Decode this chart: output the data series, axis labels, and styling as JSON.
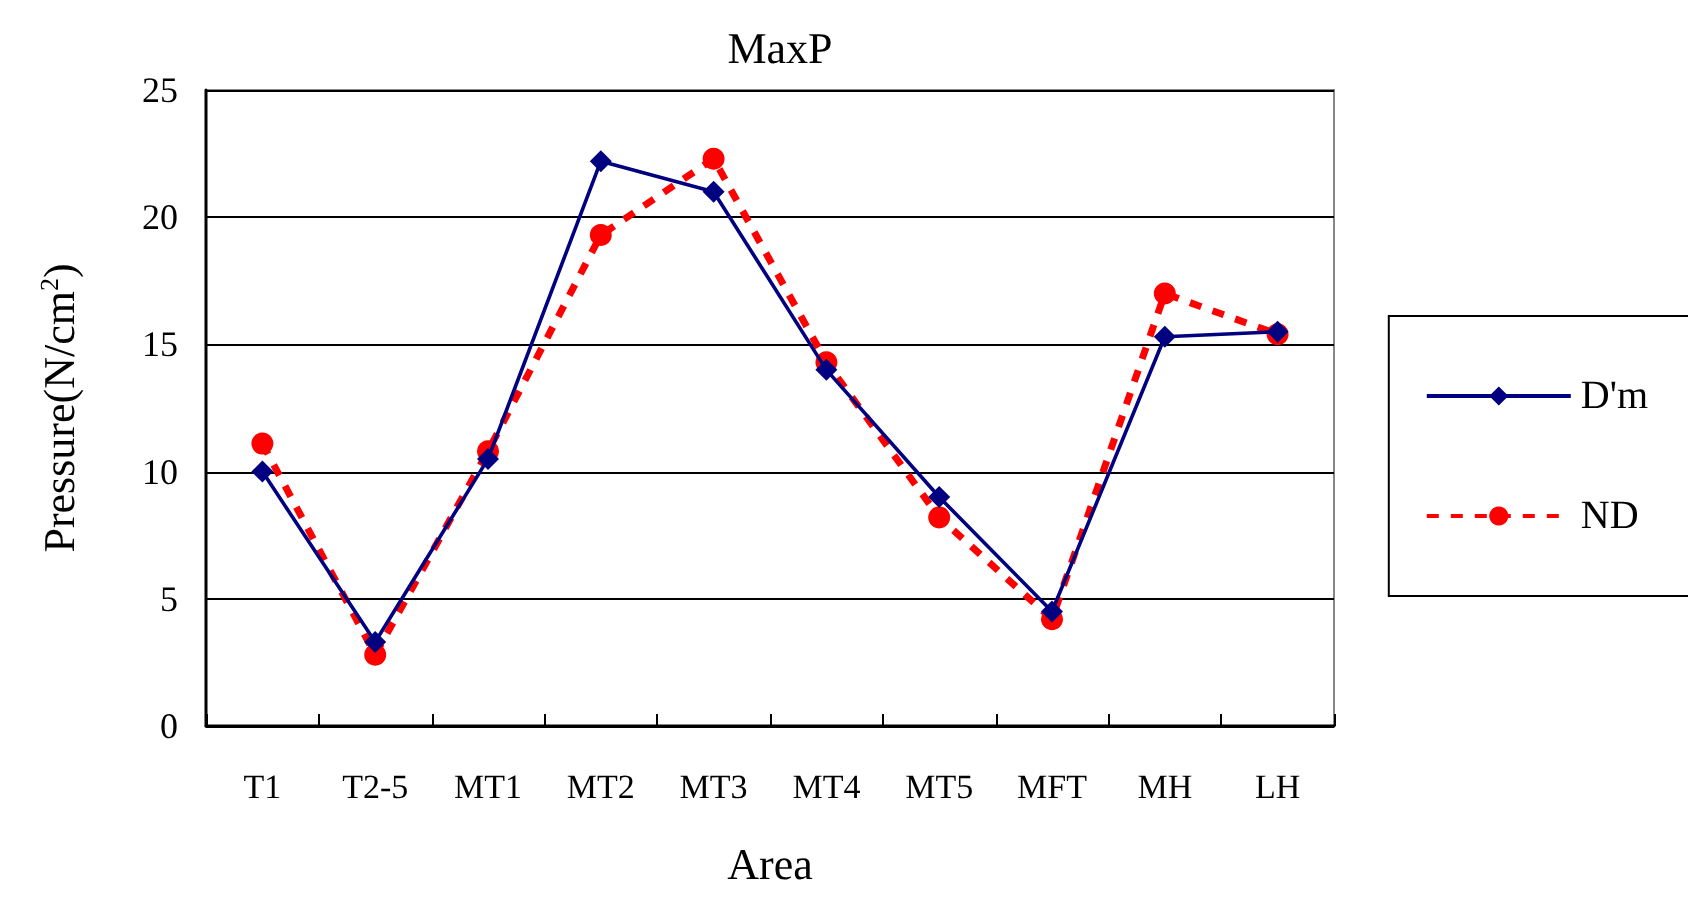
{
  "chart_data": {
    "type": "line",
    "title": "MaxP",
    "xlabel": "Area",
    "ylabel": "Pressure(N/cm$^{2}$)",
    "categories": [
      "T1",
      "T2-5",
      "MT1",
      "MT2",
      "MT3",
      "MT4",
      "MT5",
      "MFT",
      "MH",
      "LH"
    ],
    "series": [
      {
        "name": "D'm",
        "color": "#000080",
        "marker": "diamond",
        "line_style": "solid",
        "values": [
          10.0,
          3.3,
          10.5,
          22.2,
          21.0,
          14.0,
          9.0,
          4.5,
          15.3,
          15.5
        ]
      },
      {
        "name": "ND",
        "color": "#ff0000",
        "marker": "circle",
        "line_style": "dashed",
        "values": [
          11.1,
          2.8,
          10.8,
          19.3,
          22.3,
          14.3,
          8.2,
          4.2,
          17.0,
          15.4
        ]
      }
    ],
    "ylim": [
      0,
      25
    ],
    "yticks": [
      0,
      5,
      10,
      15,
      20,
      25
    ],
    "grid": "y",
    "legend": "right"
  }
}
